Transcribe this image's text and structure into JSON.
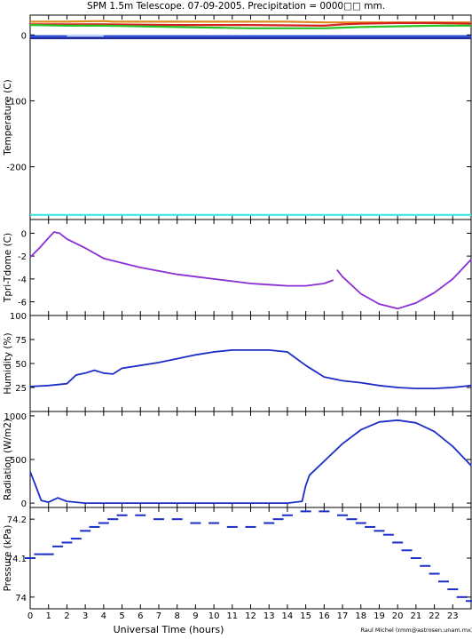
{
  "title": "SPM 1.5m Telescope. 07-09-2005. Precipitation = 0000□□ mm.",
  "xlabel": "Universal Time (hours)",
  "credit": "Raul Michel (rmm@astrosen.unam.mx)",
  "x_ticks": [
    0,
    1,
    2,
    3,
    4,
    5,
    6,
    7,
    8,
    9,
    10,
    11,
    12,
    13,
    14,
    15,
    16,
    17,
    18,
    19,
    20,
    21,
    22,
    23
  ],
  "chart_data": [
    {
      "type": "line",
      "ylabel": "Temperature (C)",
      "xlim": [
        0,
        24
      ],
      "ylim": [
        -280,
        30
      ],
      "y_ticks": [
        0,
        -100,
        -200
      ],
      "series": [
        {
          "color": "#e08a1e",
          "x": [
            0,
            2,
            4,
            4.5,
            6,
            8,
            10,
            12,
            14,
            16,
            18,
            20,
            22,
            24
          ],
          "y": [
            20,
            20,
            21,
            20,
            20,
            20,
            20,
            20,
            20,
            19,
            19,
            19,
            19,
            19
          ]
        },
        {
          "color": "#d62020",
          "x": [
            0,
            4,
            8,
            12,
            16,
            17,
            18,
            20,
            22,
            24
          ],
          "y": [
            16,
            16,
            15,
            15,
            14,
            16,
            17,
            18,
            18,
            17
          ]
        },
        {
          "color": "#27c427",
          "x": [
            0,
            2,
            4,
            6,
            8,
            10,
            12,
            14,
            16,
            17,
            18,
            20,
            22,
            24
          ],
          "y": [
            15,
            14,
            14,
            13,
            12,
            11,
            10,
            10,
            10,
            11,
            12,
            13,
            14,
            14
          ]
        },
        {
          "color": "#1a3fd6",
          "x": [
            0,
            24
          ],
          "y": [
            -2,
            -2
          ]
        },
        {
          "color": "#222a99",
          "x": [
            0,
            24
          ],
          "y": [
            -5,
            -5
          ]
        },
        {
          "color": "#b9d3ff",
          "x": [
            2,
            3,
            4
          ],
          "y": [
            -1,
            -1,
            -1
          ]
        },
        {
          "color": "#3fe8e8",
          "x": [
            0,
            24
          ],
          "y": [
            -273,
            -273
          ]
        }
      ]
    },
    {
      "type": "line",
      "ylabel": "Tpri-Tdome (C)",
      "xlim": [
        0,
        24
      ],
      "ylim": [
        -7.2,
        1.2
      ],
      "y_ticks": [
        0,
        -2,
        -4,
        -6
      ],
      "series": [
        {
          "color": "#8a2ed6",
          "x": [
            0,
            0.5,
            1,
            1.3,
            1.6,
            2,
            3,
            4,
            5,
            6,
            7,
            8,
            9,
            10,
            11,
            12,
            13,
            14,
            15,
            16,
            16.5
          ],
          "y": [
            -2.1,
            -1.3,
            -0.4,
            0.1,
            0,
            -0.5,
            -1.3,
            -2.2,
            -2.6,
            -3,
            -3.3,
            -3.6,
            -3.8,
            -4,
            -4.2,
            -4.4,
            -4.5,
            -4.6,
            -4.6,
            -4.4,
            -4.1
          ]
        },
        {
          "color": "#8a2ed6",
          "x": [
            16.7,
            17,
            18,
            19,
            20,
            21,
            22,
            23,
            24
          ],
          "y": [
            -3.2,
            -3.8,
            -5.3,
            -6.2,
            -6.6,
            -6.1,
            -5.2,
            -4,
            -2.3
          ]
        }
      ]
    },
    {
      "type": "line",
      "ylabel": "Humidity (%)",
      "xlim": [
        0,
        24
      ],
      "ylim": [
        0,
        100
      ],
      "y_ticks": [
        25,
        50,
        75,
        100
      ],
      "series": [
        {
          "color": "#1a2ec7",
          "x": [
            0,
            1,
            2,
            2.5,
            3,
            3.5,
            4,
            4.5,
            5,
            6,
            7,
            8,
            9,
            10,
            11,
            12,
            13,
            14,
            15,
            16,
            17,
            18,
            19,
            20,
            21,
            22,
            23,
            24
          ],
          "y": [
            26,
            27,
            29,
            38,
            40,
            43,
            40,
            39,
            45,
            48,
            51,
            55,
            59,
            62,
            64,
            64,
            64,
            62,
            48,
            36,
            32,
            30,
            27,
            25,
            24,
            24,
            25,
            27
          ]
        }
      ]
    },
    {
      "type": "line",
      "ylabel": "Radiation (W/m2)",
      "xlim": [
        0,
        24
      ],
      "ylim": [
        -50,
        1050
      ],
      "y_ticks": [
        0,
        500,
        1000
      ],
      "series": [
        {
          "color": "#1a2ec7",
          "x": [
            0,
            0.3,
            0.6,
            1,
            1.5,
            2,
            3,
            5,
            8,
            10,
            12,
            14,
            14.8,
            15,
            15.2,
            16,
            17,
            18,
            19,
            20,
            21,
            22,
            23,
            24
          ],
          "y": [
            360,
            200,
            30,
            10,
            60,
            20,
            0,
            0,
            0,
            0,
            0,
            0,
            20,
            200,
            320,
            480,
            680,
            840,
            930,
            950,
            920,
            820,
            650,
            430
          ]
        }
      ]
    },
    {
      "type": "scatter",
      "ylabel": "Pressure (kPa)",
      "xlim": [
        0,
        24
      ],
      "ylim": [
        73.97,
        74.23
      ],
      "y_ticks": [
        74,
        74.1,
        74.2
      ],
      "series": [
        {
          "color": "#1a2ec7",
          "x": [
            0,
            0.5,
            1,
            1.5,
            2,
            2.5,
            3,
            3.5,
            4,
            4.5,
            5,
            6,
            7,
            8,
            9,
            10,
            11,
            12,
            13,
            13.5,
            14,
            15,
            16,
            17,
            17.5,
            18,
            18.5,
            19,
            19.5,
            20,
            20.5,
            21,
            21.5,
            22,
            22.5,
            23,
            23.5,
            24
          ],
          "y": [
            74.1,
            74.11,
            74.11,
            74.13,
            74.14,
            74.15,
            74.17,
            74.18,
            74.19,
            74.2,
            74.21,
            74.21,
            74.2,
            74.2,
            74.19,
            74.19,
            74.18,
            74.18,
            74.19,
            74.2,
            74.21,
            74.22,
            74.22,
            74.21,
            74.2,
            74.19,
            74.18,
            74.17,
            74.16,
            74.14,
            74.12,
            74.1,
            74.08,
            74.06,
            74.04,
            74.02,
            74,
            73.99
          ]
        }
      ]
    }
  ]
}
